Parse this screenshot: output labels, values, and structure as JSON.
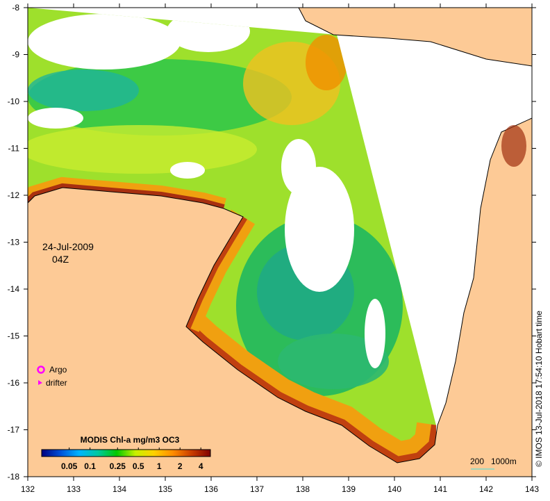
{
  "map": {
    "date": "24-Jul-2009",
    "time": "04Z",
    "lon_ticks": [
      "132",
      "133",
      "134",
      "135",
      "136",
      "137",
      "138",
      "139",
      "140",
      "141",
      "142",
      "143"
    ],
    "lat_ticks": [
      "-8",
      "-9",
      "-10",
      "-11",
      "-12",
      "-13",
      "-14",
      "-15",
      "-16",
      "-17",
      "-18"
    ],
    "legend": {
      "title": "MODIS Chl-a mg/m3 OC3",
      "ticks": [
        "0.05",
        "0.1",
        "0.25",
        "0.5",
        "1",
        "2",
        "4"
      ],
      "colors": [
        "#00007f",
        "#0050d8",
        "#00b4ff",
        "#00c8a0",
        "#00c800",
        "#c8f000",
        "#ffd000",
        "#ff8c00",
        "#c83c00",
        "#800000"
      ]
    },
    "markers": {
      "argo": "Argo",
      "drifter": "drifter",
      "argo_color": "#ff00ff",
      "drifter_color": "#ff00ff"
    },
    "scale_bar": {
      "left": "200",
      "right": "1000m",
      "color": "#40e0e0"
    },
    "credit": "© IMOS 13-Jul-2018 17:54:10 Hobart time",
    "colors": {
      "land": "#fdca96",
      "nodata": "#ffffff"
    }
  }
}
